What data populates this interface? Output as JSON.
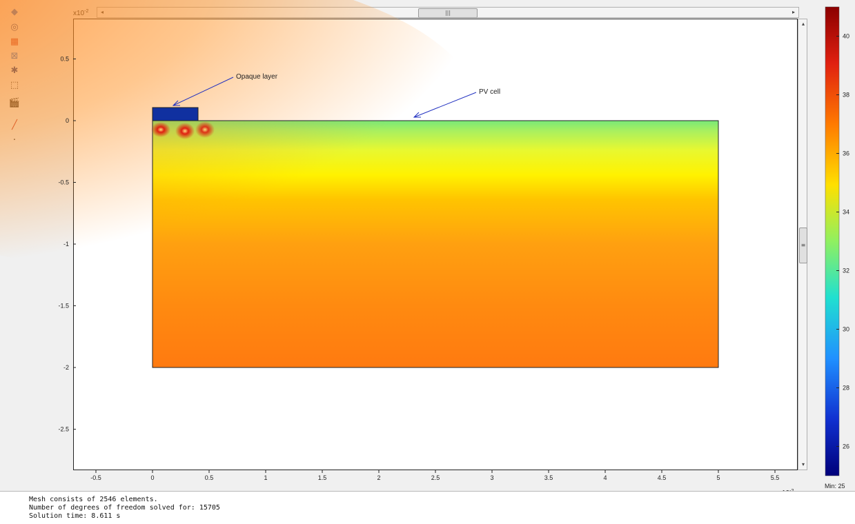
{
  "toolbar": {
    "tools": [
      {
        "name": "surface-plot-icon",
        "glyph": "◆",
        "color": "#2a6fd6"
      },
      {
        "name": "contour-icon",
        "glyph": "◎",
        "color": "#1a3a8a"
      },
      {
        "name": "mesh-icon",
        "glyph": "▦",
        "color": "#c03030"
      },
      {
        "name": "boundary-icon",
        "glyph": "⊠",
        "color": "#2a6fd6"
      },
      {
        "name": "arrow-plot-icon",
        "glyph": "✱",
        "color": "#1a3a8a"
      },
      {
        "name": "zoom-box-icon",
        "glyph": "⬚",
        "color": "#222222"
      },
      {
        "name": "animation-icon",
        "glyph": "🎬",
        "color": "#222222"
      },
      {
        "name": "line-draw-icon",
        "glyph": "╱",
        "color": "#c03030"
      },
      {
        "name": "point-icon",
        "glyph": "·",
        "color": "#222222"
      }
    ]
  },
  "plot": {
    "x_exponent": "x10",
    "x_exponent_power": "-2",
    "y_exponent": "x10",
    "y_exponent_power": "-2",
    "x_ticks": [
      "-0.5",
      "0",
      "0.5",
      "1",
      "1.5",
      "2",
      "2.5",
      "3",
      "3.5",
      "4",
      "4.5",
      "5",
      "5.5"
    ],
    "y_ticks": [
      "0.5",
      "0",
      "-0.5",
      "-1",
      "-1.5",
      "-2",
      "-2.5"
    ],
    "annotations": {
      "opaque_layer": "Opaque layer",
      "pv_cell": "PV cell"
    },
    "colors": {
      "opaque": "#1030a0",
      "frame": "#222222"
    }
  },
  "colorbar": {
    "ticks": [
      "40",
      "38",
      "36",
      "34",
      "32",
      "30",
      "28",
      "26"
    ],
    "min_label": "Min: 25",
    "max_value": 41,
    "min_value": 25
  },
  "log": {
    "lines": [
      "Mesh consists of 2546 elements.",
      "Number of degrees of freedom solved for: 15705",
      "Solution time: 8.611 s"
    ]
  }
}
